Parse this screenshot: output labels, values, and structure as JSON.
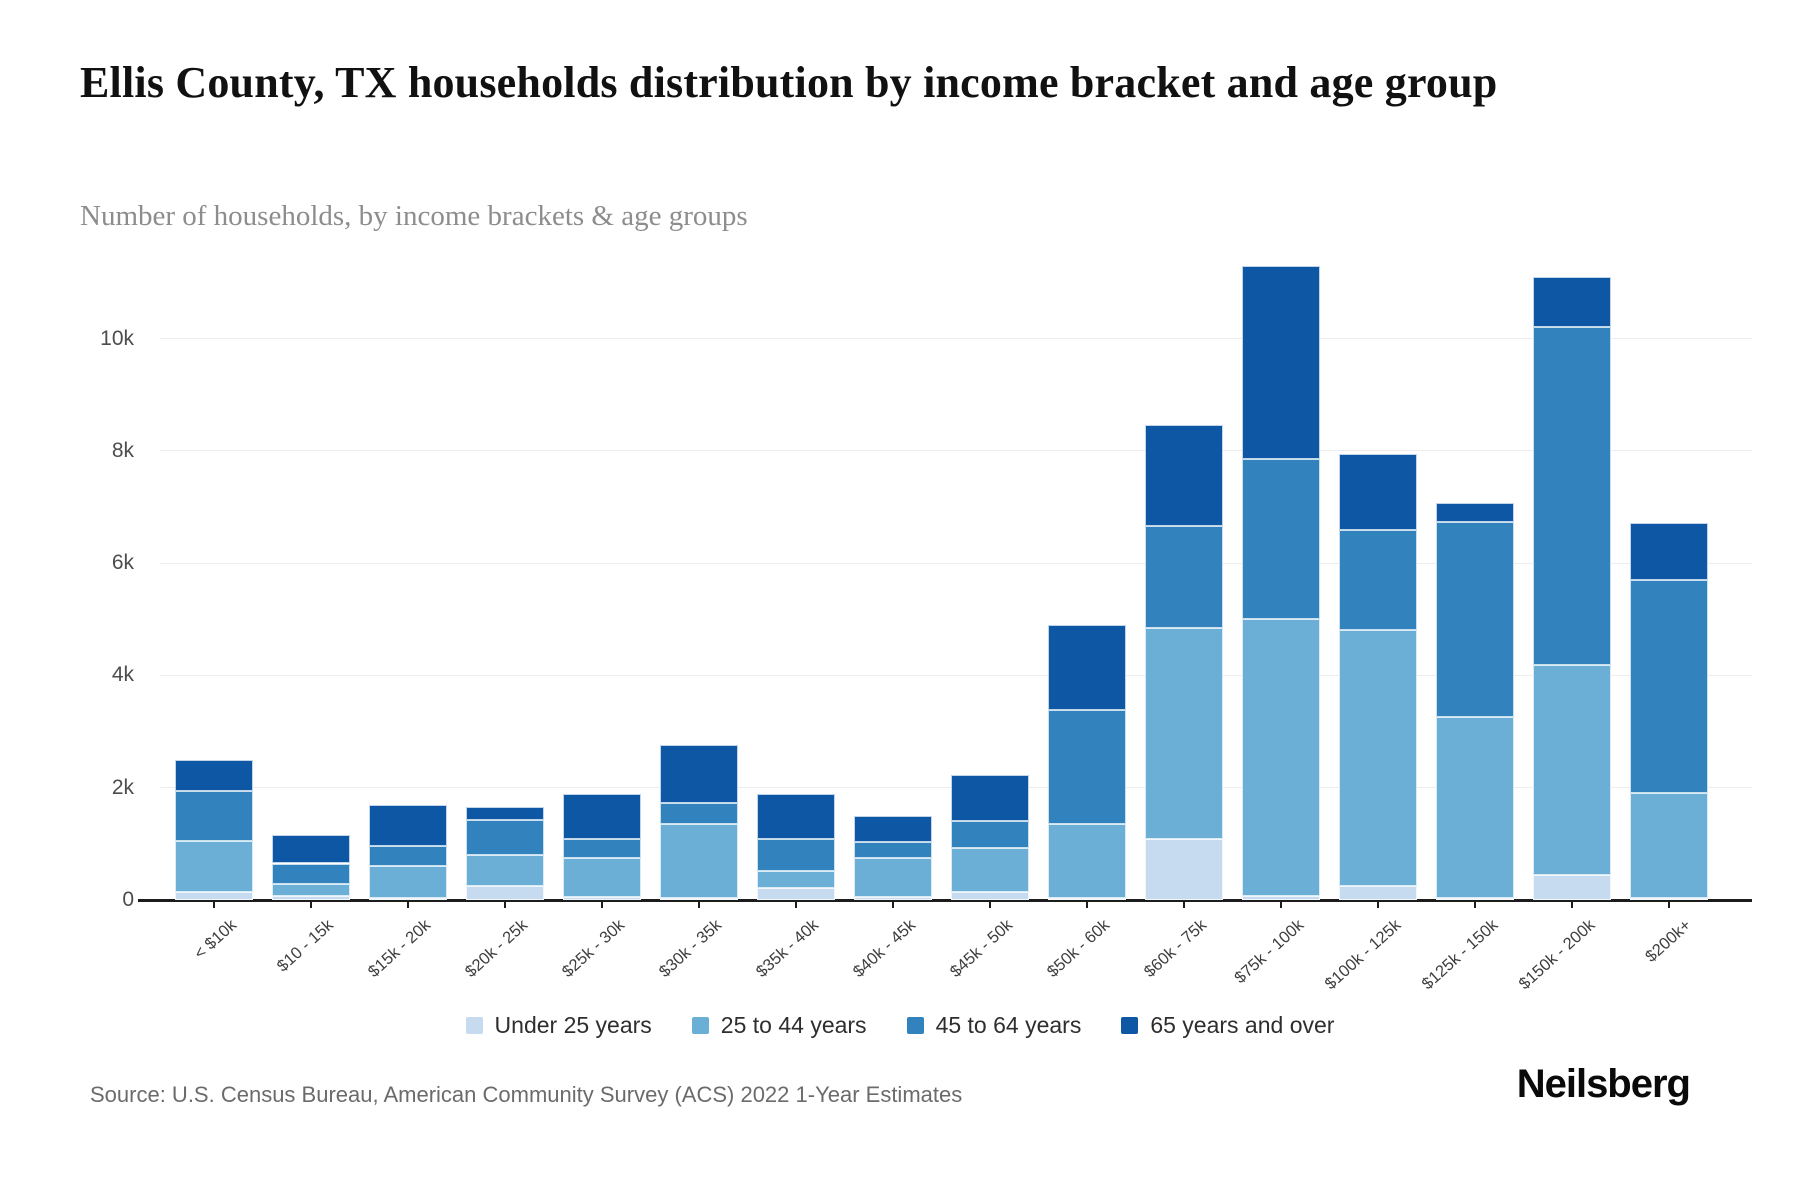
{
  "header": {
    "title": "Ellis County, TX households distribution by income bracket and age group",
    "subtitle": "Number of households, by income brackets & age groups"
  },
  "footer": {
    "source": "Source: U.S. Census Bureau, American Community Survey (ACS) 2022 1-Year Estimates",
    "brand": "Neilsberg"
  },
  "chart_data": {
    "type": "bar",
    "stacked": true,
    "title": "Ellis County, TX households distribution by income bracket and age group",
    "xlabel": "",
    "ylabel": "Number of households",
    "ylim": [
      0,
      11500
    ],
    "grid": "horizontal",
    "legend_position": "bottom-center",
    "y_ticks": [
      {
        "v": 0,
        "label": "0"
      },
      {
        "v": 2000,
        "label": "2k"
      },
      {
        "v": 4000,
        "label": "4k"
      },
      {
        "v": 6000,
        "label": "6k"
      },
      {
        "v": 8000,
        "label": "8k"
      },
      {
        "v": 10000,
        "label": "10k"
      }
    ],
    "categories": [
      "< $10k",
      "$10 - 15k",
      "$15k - 20k",
      "$20k - 25k",
      "$25k - 30k",
      "$30k - 35k",
      "$35k - 40k",
      "$40k - 45k",
      "$45k - 50k",
      "$50k - 60k",
      "$60k - 75k",
      "$75k - 100k",
      "$100k - 125k",
      "$125k - 150k",
      "$150k - 200k",
      "$200k+"
    ],
    "series": [
      {
        "name": "Under 25 years",
        "color": "#c6dbef",
        "values": [
          150,
          70,
          30,
          250,
          50,
          30,
          210,
          60,
          140,
          40,
          1080,
          80,
          250,
          40,
          450,
          30
        ]
      },
      {
        "name": "25 to 44 years",
        "color": "#6baed6",
        "values": [
          900,
          220,
          570,
          550,
          690,
          1320,
          300,
          680,
          790,
          1320,
          3760,
          4920,
          4550,
          3220,
          3730,
          1870
        ]
      },
      {
        "name": "45 to 64 years",
        "color": "#3182bd",
        "values": [
          900,
          360,
          360,
          620,
          340,
          370,
          570,
          300,
          480,
          2020,
          1820,
          2850,
          1790,
          3470,
          6020,
          3800
        ]
      },
      {
        "name": "65 years and over",
        "color": "#0d57a4",
        "values": [
          550,
          500,
          740,
          230,
          800,
          1040,
          810,
          460,
          810,
          1520,
          1800,
          3450,
          1350,
          340,
          900,
          1010
        ]
      }
    ],
    "totals": [
      2500,
      1150,
      1700,
      1650,
      1880,
      2760,
      1890,
      1500,
      2220,
      4900,
      8460,
      11300,
      7940,
      7070,
      11100,
      6710
    ]
  }
}
